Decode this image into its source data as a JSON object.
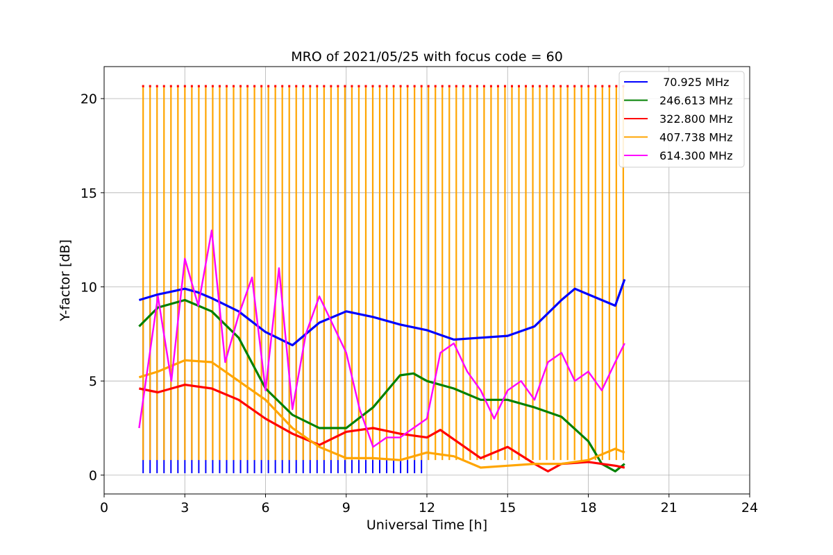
{
  "chart_data": {
    "type": "line",
    "title": "MRO of 2021/05/25 with focus code = 60",
    "xlabel": "Universal Time [h]",
    "ylabel": "Y-factor [dB]",
    "xlim": [
      0,
      24
    ],
    "ylim": [
      -1,
      21.7
    ],
    "xticks": [
      0,
      3,
      6,
      9,
      12,
      15,
      18,
      21,
      24
    ],
    "yticks": [
      0,
      5,
      10,
      15,
      20
    ],
    "grid": true,
    "legend_position": "top-right",
    "series": [
      {
        "name": " 70.925 MHz",
        "color": "#0000ff",
        "x": [
          1.3,
          2,
          3,
          3.5,
          4,
          5,
          6,
          7,
          8,
          9,
          10,
          11,
          12,
          13,
          14,
          15,
          16,
          17,
          17.5,
          18,
          18.5,
          19,
          19.35
        ],
        "y": [
          9.3,
          9.6,
          9.9,
          9.7,
          9.4,
          8.7,
          7.6,
          6.9,
          8.1,
          8.7,
          8.4,
          8.0,
          7.7,
          7.2,
          7.3,
          7.4,
          7.9,
          9.3,
          9.9,
          9.6,
          9.3,
          9.0,
          10.4
        ]
      },
      {
        "name": "246.613 MHz",
        "color": "#008000",
        "x": [
          1.3,
          2,
          3,
          4,
          5,
          6,
          7,
          8,
          9,
          10,
          11,
          11.5,
          12,
          13,
          14,
          15,
          16,
          17,
          18,
          18.5,
          19,
          19.35
        ],
        "y": [
          7.9,
          8.9,
          9.3,
          8.7,
          7.3,
          4.6,
          3.2,
          2.5,
          2.5,
          3.6,
          5.3,
          5.4,
          5.0,
          4.6,
          4.0,
          4.0,
          3.6,
          3.1,
          1.8,
          0.6,
          0.2,
          0.6
        ]
      },
      {
        "name": "322.800 MHz",
        "color": "#ff0000",
        "x": [
          1.3,
          2,
          3,
          4,
          5,
          6,
          7,
          8,
          9,
          10,
          11,
          12,
          12.5,
          13,
          14,
          15,
          16,
          16.5,
          17,
          18,
          19,
          19.35
        ],
        "y": [
          4.6,
          4.4,
          4.8,
          4.6,
          4.0,
          3.0,
          2.2,
          1.6,
          2.3,
          2.5,
          2.2,
          2.0,
          2.4,
          1.9,
          0.9,
          1.5,
          0.6,
          0.2,
          0.6,
          0.7,
          0.5,
          0.4
        ]
      },
      {
        "name": "407.738 MHz",
        "color": "#ffa500",
        "x": [
          1.3,
          2,
          3,
          4,
          5,
          6,
          7,
          8,
          9,
          10,
          11,
          12,
          13,
          14,
          15,
          16,
          17,
          18,
          19,
          19.35
        ],
        "y": [
          5.2,
          5.5,
          6.1,
          6.0,
          5.0,
          4.0,
          2.5,
          1.5,
          0.9,
          0.9,
          0.8,
          1.2,
          1.0,
          0.4,
          0.5,
          0.6,
          0.6,
          0.8,
          1.4,
          1.2
        ]
      },
      {
        "name": "614.300 MHz",
        "color": "#ff00ff",
        "x": [
          1.3,
          2,
          2.5,
          3,
          3.5,
          4,
          4.5,
          5,
          5.5,
          6,
          6.5,
          7,
          7.5,
          8,
          8.5,
          9,
          9.5,
          10,
          10.5,
          11,
          11.5,
          12,
          12.5,
          13,
          13.5,
          14,
          14.5,
          15,
          15.5,
          16,
          16.5,
          17,
          17.5,
          18,
          18.5,
          19,
          19.35
        ],
        "y": [
          2.5,
          9.5,
          5.0,
          11.5,
          9.0,
          13.0,
          6.0,
          8.5,
          10.5,
          4.5,
          11.0,
          3.5,
          7.5,
          9.5,
          8.0,
          6.5,
          3.5,
          1.5,
          2.0,
          2.0,
          2.5,
          3.0,
          6.5,
          7.0,
          5.5,
          4.5,
          3.0,
          4.5,
          5.0,
          4.0,
          6.0,
          6.5,
          5.0,
          5.5,
          4.5,
          6.0,
          7.0
        ]
      },
      {
        "name": "",
        "role": "calibration-spikes",
        "color": "#ffa500",
        "x": [
          1.45,
          19.3
        ],
        "y_low": 0.8,
        "y_high": 20.6,
        "count": 70
      }
    ]
  }
}
